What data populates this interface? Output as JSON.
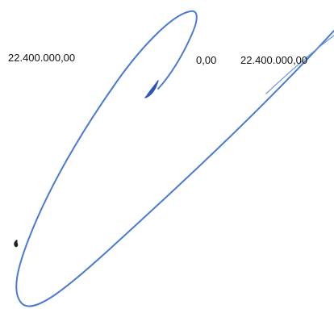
{
  "labels": {
    "left_amount": "22.400.000,00",
    "zero_amount": "0,00",
    "right_amount": "22.400.000,00"
  },
  "colors": {
    "stroke": "#4a7bd0",
    "stroke_dark": "#2f55b8",
    "mark": "#222222",
    "background": "#ffffff"
  }
}
